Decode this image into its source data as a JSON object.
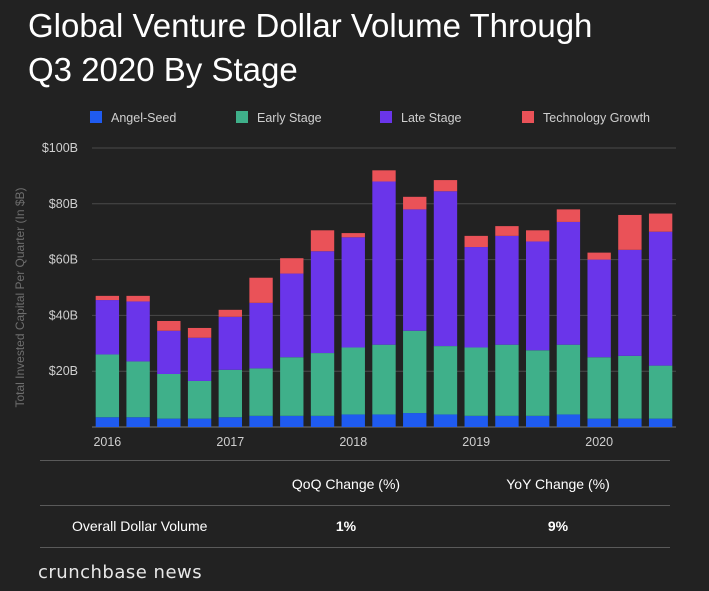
{
  "title_lines": [
    "Global Venture Dollar Volume Through",
    "Q3 2020 By Stage"
  ],
  "colors": {
    "angel_seed": "#1f5bf0",
    "early_stage": "#3fb08a",
    "late_stage": "#6a35ea",
    "technology_growth": "#ea5258",
    "grid": "#4a4a4a",
    "text": "#ffffff",
    "axis_text": "#cfcfcf"
  },
  "chart_data": {
    "type": "bar",
    "stacked": true,
    "ylabel": "Total Invested Capital Per Quarter (In $B)",
    "ylim": [
      0,
      100
    ],
    "y_ticks": [
      "$20B",
      "$40B",
      "$60B",
      "$80B",
      "$100B"
    ],
    "y_tick_values": [
      20,
      40,
      60,
      80,
      100
    ],
    "x_tick_labels": [
      {
        "label": "2016",
        "bar_index": 0
      },
      {
        "label": "2017",
        "bar_index": 4
      },
      {
        "label": "2018",
        "bar_index": 8
      },
      {
        "label": "2019",
        "bar_index": 12
      },
      {
        "label": "2020",
        "bar_index": 16
      }
    ],
    "categories": [
      "2016 Q1",
      "2016 Q2",
      "2016 Q3",
      "2016 Q4",
      "2017 Q1",
      "2017 Q2",
      "2017 Q3",
      "2017 Q4",
      "2018 Q1",
      "2018 Q2",
      "2018 Q3",
      "2018 Q4",
      "2019 Q1",
      "2019 Q2",
      "2019 Q3",
      "2019 Q4",
      "2020 Q1",
      "2020 Q2",
      "2020 Q3"
    ],
    "legend_position": "top",
    "grid": true,
    "series": [
      {
        "name": "Angel-Seed",
        "color_key": "angel_seed",
        "values": [
          3.5,
          3.5,
          3,
          3,
          3.5,
          4,
          4,
          4,
          4.5,
          4.5,
          5,
          4.5,
          4,
          4,
          4,
          4.5,
          3,
          3,
          3
        ]
      },
      {
        "name": "Early Stage",
        "color_key": "early_stage",
        "values": [
          22.5,
          20,
          16,
          13.5,
          17,
          17,
          21,
          22.5,
          24,
          25,
          29.5,
          24.5,
          24.5,
          25.5,
          23.5,
          25,
          22,
          22.5,
          19
        ]
      },
      {
        "name": "Late Stage",
        "color_key": "late_stage",
        "values": [
          19.5,
          21.5,
          15.5,
          15.5,
          19,
          23.5,
          30,
          36.5,
          39.5,
          58.5,
          43.5,
          55.5,
          36,
          39,
          39,
          44,
          35,
          38,
          48
        ]
      },
      {
        "name": "Technology Growth",
        "color_key": "technology_growth",
        "values": [
          1.5,
          2,
          3.5,
          3.5,
          2.5,
          9,
          5.5,
          7.5,
          1.5,
          4,
          4.5,
          4,
          4,
          3.5,
          4,
          4.5,
          2.5,
          12.5,
          6.5
        ]
      }
    ]
  },
  "table": {
    "headers": [
      "QoQ Change (%)",
      "YoY Change (%)"
    ],
    "row_label": "Overall Dollar Volume",
    "values": [
      "1%",
      "9%"
    ]
  },
  "brand": "crunchbase news"
}
